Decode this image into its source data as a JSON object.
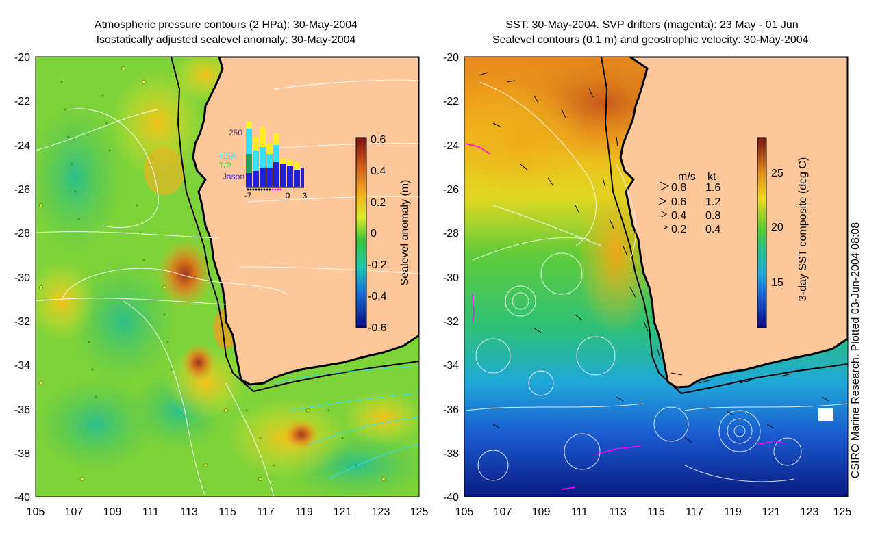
{
  "left": {
    "title_line1": "Atmospheric pressure contours (2 HPa): 30-May-2004",
    "title_line2": "Isostatically adjusted sealevel anomaly: 30-May-2004",
    "y_ticks": [
      "-20",
      "-22",
      "-24",
      "-26",
      "-28",
      "-30",
      "-32",
      "-34",
      "-36",
      "-38",
      "-40"
    ],
    "x_ticks": [
      "105",
      "107",
      "109",
      "111",
      "113",
      "115",
      "117",
      "119",
      "121",
      "123",
      "125"
    ],
    "colorbar": {
      "label": "Sealevel anomaly (m)",
      "ticks": [
        "0.6",
        "0.4",
        "0.2",
        "0",
        "-0.2",
        "-0.4",
        "-0.6"
      ]
    },
    "inset": {
      "count_label": "250",
      "legend": [
        "ESA",
        "T/P",
        "Jason"
      ],
      "x_ticks": [
        "-7",
        "0",
        "3"
      ],
      "legend_colors": [
        "#33e0ff",
        "#22dd22",
        "#2222dd"
      ]
    }
  },
  "right": {
    "title_line1": "SST: 30-May-2004. SVP drifters (magenta): 23 May - 01 Jun",
    "title_line2": "Sealevel contours (0.1 m) and geostrophic velocity: 30-May-2004.",
    "y_ticks": [
      "-20",
      "-22",
      "-24",
      "-26",
      "-28",
      "-30",
      "-32",
      "-34",
      "-36",
      "-38",
      "-40"
    ],
    "x_ticks": [
      "105",
      "107",
      "109",
      "111",
      "113",
      "115",
      "117",
      "119",
      "121",
      "123",
      "125"
    ],
    "colorbar": {
      "label": "3-day SST composite (deg C)",
      "ticks": [
        "25",
        "20",
        "15"
      ]
    },
    "velocity_legend": {
      "header_ms": "m/s",
      "header_kt": "kt",
      "rows": [
        {
          "ms": "0.8",
          "kt": "1.6"
        },
        {
          "ms": "0.6",
          "kt": "1.2"
        },
        {
          "ms": "0.4",
          "kt": "0.8"
        },
        {
          "ms": "0.2",
          "kt": "0.4"
        }
      ]
    }
  },
  "credit": "CSIRO Marine Research. Plotted 03-Jun-2004 08:08",
  "colors": {
    "land": "#fcc89b",
    "coast": "#000000",
    "drifter": "#ff00ff"
  }
}
